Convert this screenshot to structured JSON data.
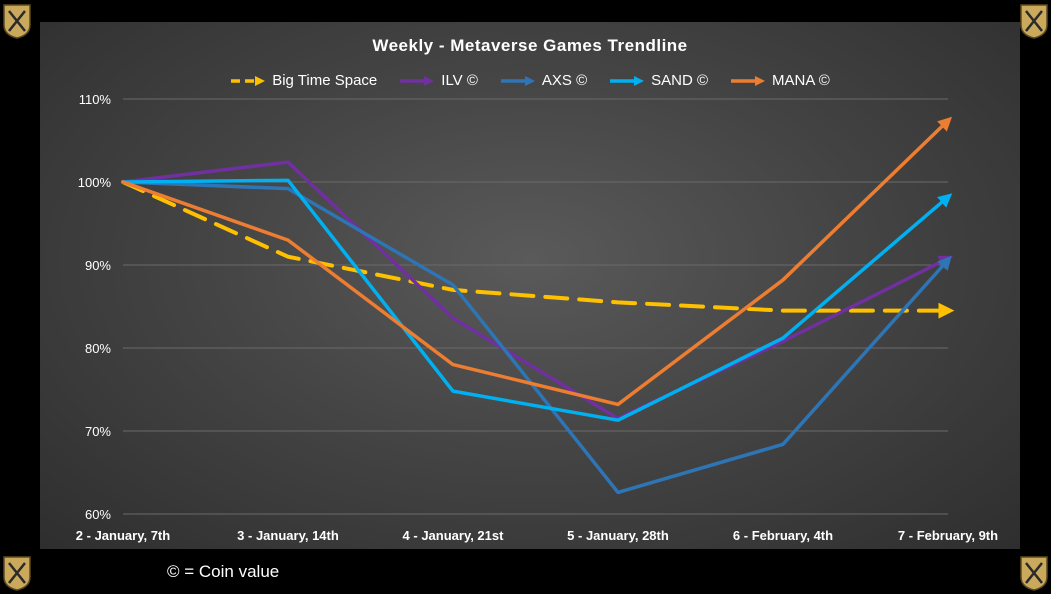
{
  "footnote": "© = Coin value",
  "colors": {
    "Big Time Space": "#FFC000",
    "ILV ©": "#7030A0",
    "AXS ©": "#2E75B6",
    "SAND ©": "#00B0F0",
    "MANA ©": "#ED7D31"
  },
  "chart_data": {
    "type": "line",
    "title": "Weekly - Metaverse Games Trendline",
    "xlabel": "",
    "ylabel": "",
    "ylim": [
      60,
      110
    ],
    "yticks": [
      "60%",
      "70%",
      "80%",
      "90%",
      "100%",
      "110%"
    ],
    "grid": true,
    "legend_position": "top",
    "categories": [
      "2 - January, 7th",
      "3 - January, 14th",
      "4 - January, 21st",
      "5 - January, 28th",
      "6 - February, 4th",
      "7 - February, 9th"
    ],
    "series": [
      {
        "name": "Big Time Space",
        "dashed": true,
        "values": [
          100,
          91,
          87,
          85.5,
          84.5,
          84.5
        ]
      },
      {
        "name": "ILV ©",
        "dashed": false,
        "values": [
          100,
          102.4,
          83.6,
          71.5,
          80.8,
          90.8
        ]
      },
      {
        "name": "AXS ©",
        "dashed": false,
        "values": [
          100,
          99.2,
          87.6,
          62.6,
          68.4,
          90.6
        ]
      },
      {
        "name": "SAND ©",
        "dashed": false,
        "values": [
          100,
          100.2,
          74.8,
          71.3,
          81.2,
          98.2
        ]
      },
      {
        "name": "MANA ©",
        "dashed": false,
        "values": [
          100,
          93,
          78,
          73.2,
          88.2,
          107.4
        ]
      }
    ]
  }
}
